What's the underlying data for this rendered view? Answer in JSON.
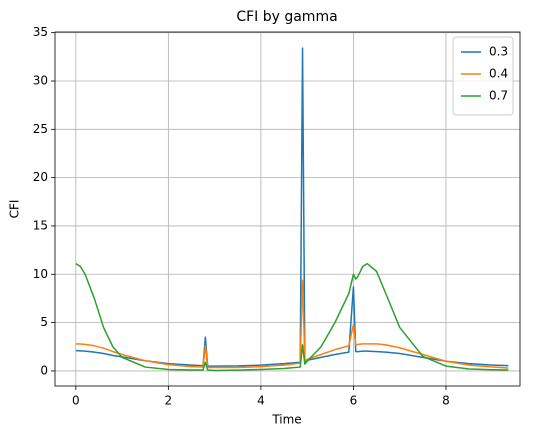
{
  "chart_data": {
    "type": "line",
    "title": "CFI by gamma",
    "x_label": "Time",
    "y_label": "CFI",
    "x": [
      0,
      0.1,
      0.2,
      0.4,
      0.6,
      0.8,
      1.0,
      1.5,
      2.0,
      2.5,
      2.75,
      2.8,
      2.85,
      3.0,
      3.5,
      4.0,
      4.5,
      4.85,
      4.9,
      4.95,
      5.0,
      5.3,
      5.6,
      5.9,
      6.0,
      6.05,
      6.1,
      6.2,
      6.3,
      6.5,
      6.7,
      7.0,
      7.5,
      8.0,
      8.5,
      9.0,
      9.35
    ],
    "series": [
      {
        "name": "0.3",
        "color": "#1f77b4",
        "values": [
          2.1,
          2.08,
          2.05,
          1.95,
          1.8,
          1.6,
          1.45,
          1.05,
          0.75,
          0.6,
          0.55,
          3.5,
          0.5,
          0.5,
          0.52,
          0.6,
          0.75,
          0.9,
          33.4,
          1.0,
          1.1,
          1.4,
          1.7,
          1.95,
          8.7,
          2.0,
          2.0,
          2.05,
          2.05,
          2.0,
          1.95,
          1.8,
          1.4,
          1.0,
          0.75,
          0.6,
          0.55
        ]
      },
      {
        "name": "0.4",
        "color": "#ff7f0e",
        "values": [
          2.8,
          2.78,
          2.75,
          2.6,
          2.35,
          2.0,
          1.7,
          1.05,
          0.65,
          0.45,
          0.4,
          2.6,
          0.35,
          0.35,
          0.35,
          0.45,
          0.6,
          0.8,
          9.4,
          1.0,
          1.2,
          1.7,
          2.2,
          2.6,
          4.8,
          2.7,
          2.75,
          2.8,
          2.8,
          2.8,
          2.7,
          2.4,
          1.7,
          1.0,
          0.6,
          0.4,
          0.3
        ]
      },
      {
        "name": "0.7",
        "color": "#2ca02c",
        "values": [
          11.1,
          10.8,
          10.0,
          7.5,
          4.5,
          2.5,
          1.4,
          0.4,
          0.15,
          0.1,
          0.1,
          0.9,
          0.1,
          0.05,
          0.08,
          0.15,
          0.25,
          0.4,
          2.7,
          0.7,
          1.0,
          2.5,
          5.0,
          8.0,
          10.0,
          9.5,
          9.8,
          10.8,
          11.1,
          10.3,
          8.0,
          4.5,
          1.5,
          0.5,
          0.2,
          0.12,
          0.1
        ]
      }
    ],
    "xlim": [
      -0.45,
      9.6
    ],
    "ylim": [
      -1.56,
      35.07
    ],
    "xticks": [
      0,
      2,
      4,
      6,
      8
    ],
    "yticks": [
      0,
      5,
      10,
      15,
      20,
      25,
      30,
      35
    ],
    "grid": true,
    "legend": "upper right"
  }
}
